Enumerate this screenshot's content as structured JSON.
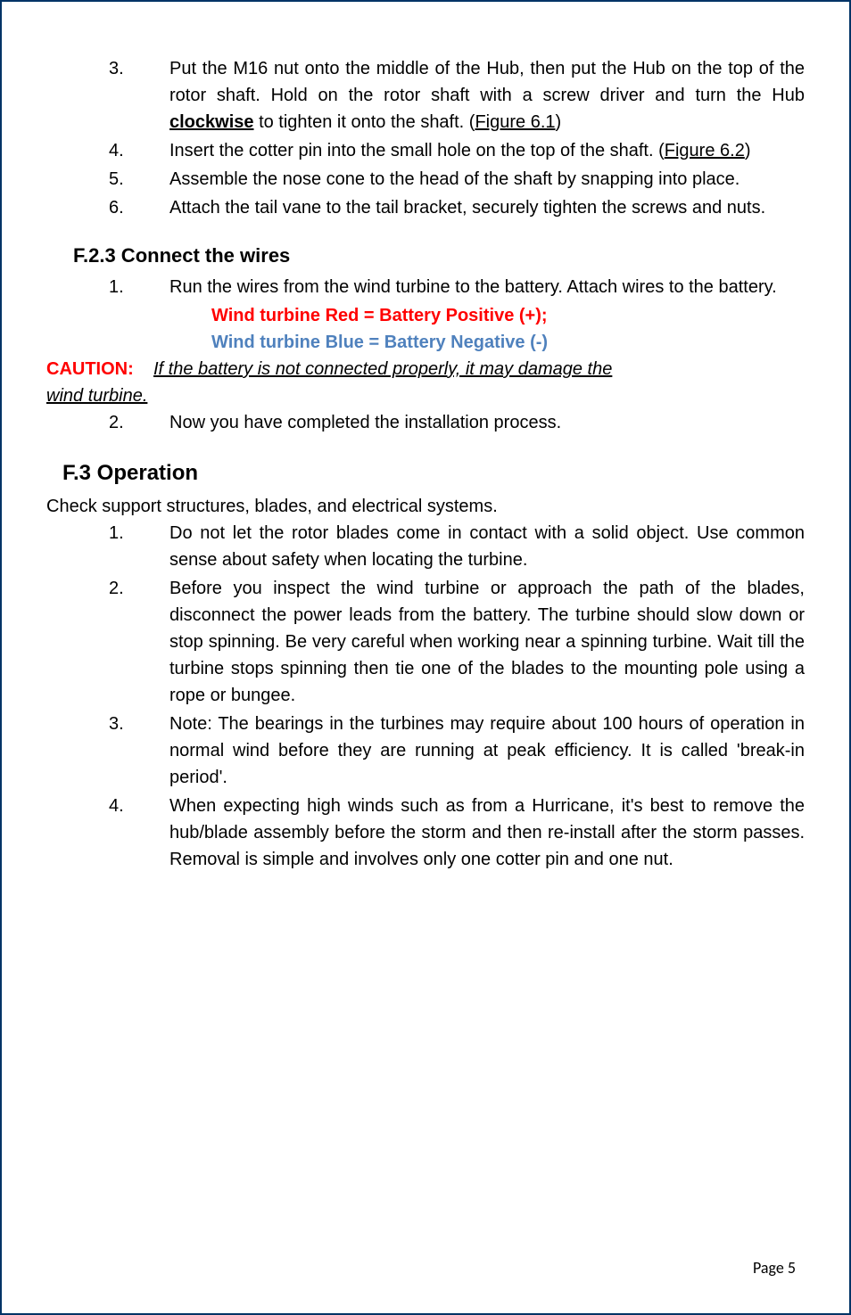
{
  "steps_top": [
    {
      "num": "3.",
      "text_parts": [
        {
          "t": "Put the M16 nut onto the middle of the Hub, then put the Hub on the top of the rotor shaft. Hold on the rotor shaft with a screw driver and turn the Hub "
        },
        {
          "t": "clockwise",
          "style": "bold-under"
        },
        {
          "t": " to tighten it onto the shaft. ("
        },
        {
          "t": "Figure 6.1",
          "style": "underline"
        },
        {
          "t": ")"
        }
      ]
    },
    {
      "num": "4.",
      "text_parts": [
        {
          "t": "Insert the cotter pin into the small hole on the top of the shaft. ("
        },
        {
          "t": "Figure 6.2",
          "style": "underline"
        },
        {
          "t": ")"
        }
      ]
    },
    {
      "num": "5.",
      "text_parts": [
        {
          "t": "Assemble the nose cone to the head of the shaft by snapping into place."
        }
      ]
    },
    {
      "num": "6.",
      "text_parts": [
        {
          "t": "Attach the tail vane to the tail bracket, securely tighten the screws and nuts."
        }
      ]
    }
  ],
  "connect_heading": "F.2.3   Connect the wires",
  "connect_steps_1": {
    "num": "1.",
    "text": "Run the wires from the wind turbine to the battery. Attach wires to the battery."
  },
  "wire_red": "Wind turbine Red = Battery Positive (+);",
  "wire_blue": "Wind turbine Blue = Battery Negative (-)",
  "caution_label": "CAUTION:",
  "caution_text_line1": "If the battery is not connected properly, it may damage the ",
  "caution_text_line2": "wind turbine.",
  "connect_steps_2": {
    "num": "2.",
    "text": "Now you have completed the installation process."
  },
  "operation_heading": "F.3   Operation",
  "operation_intro": "Check support structures, blades, and electrical systems.",
  "operation_steps": [
    {
      "num": "1.",
      "text": "Do not let the rotor blades come in contact with a solid object. Use common sense about safety when locating the turbine."
    },
    {
      "num": "2.",
      "text": "Before you inspect the wind turbine or approach the path of the blades, disconnect the power leads from the battery. The turbine should slow down or stop spinning. Be very careful when working near a spinning turbine. Wait till the turbine stops spinning then tie one of the blades to the mounting pole using a rope or bungee."
    },
    {
      "num": "3.",
      "text": "Note: The bearings in the turbines may require about 100 hours of operation in normal wind before they are running at peak efficiency. It is called 'break-in period'."
    },
    {
      "num": "4.",
      "text": "When expecting high winds such as from a Hurricane, it's best to remove the hub/blade assembly before the storm and then re-install after the storm passes. Removal is simple and involves only one cotter pin and one nut."
    }
  ],
  "page_footer": "Page 5"
}
